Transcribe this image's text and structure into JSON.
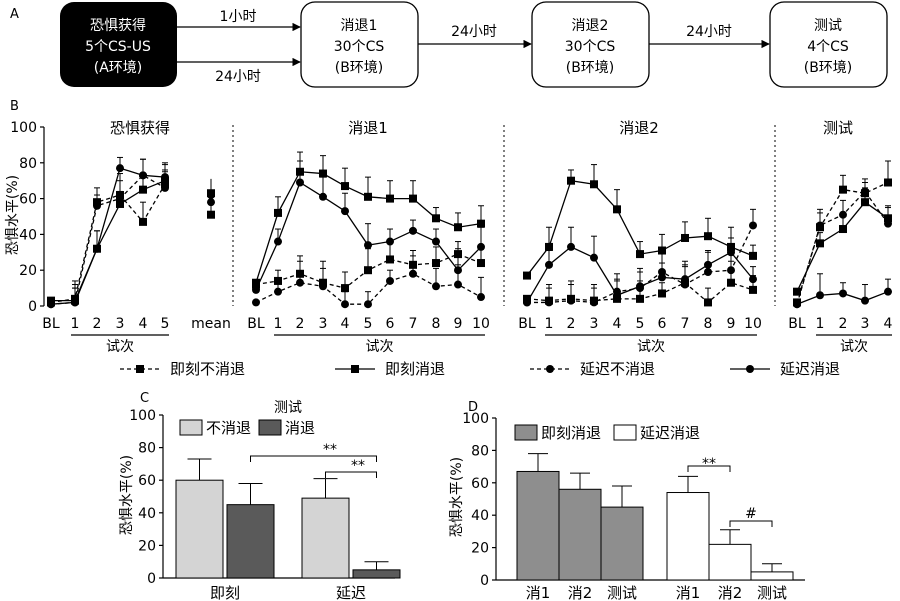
{
  "panels": {
    "A": "A",
    "B": "B",
    "C": "C",
    "D": "D"
  },
  "flow": {
    "box1": [
      "恐惧获得",
      "5个CS-US",
      "(A环境)"
    ],
    "box2": [
      "消退1",
      "30个CS",
      "(B环境)"
    ],
    "box3": [
      "消退2",
      "30个CS",
      "(B环境)"
    ],
    "box4": [
      "测试",
      "4个CS",
      "(B环境)"
    ],
    "arrow_top": "1小时",
    "arrow_bottom": "24小时",
    "arrow2": "24小时",
    "arrow3": "24小时"
  },
  "chart_data": [
    {
      "type": "line",
      "panel": "B",
      "ylabel": "恐惧水平(%)",
      "xlabel": "试次",
      "yticks": [
        "0",
        "20",
        "40",
        "60",
        "80",
        "100"
      ],
      "ylim": [
        0,
        100
      ],
      "sections": [
        {
          "title": "恐惧获得",
          "x": [
            "BL",
            "1",
            "2",
            "3",
            "4",
            "5",
            "mean"
          ]
        },
        {
          "title": "消退1",
          "x": [
            "BL",
            "1",
            "2",
            "3",
            "4",
            "5",
            "6",
            "7",
            "8",
            "9",
            "10"
          ]
        },
        {
          "title": "消退2",
          "x": [
            "BL",
            "1",
            "2",
            "3",
            "4",
            "5",
            "6",
            "7",
            "8",
            "9",
            "10"
          ]
        },
        {
          "title": "测试",
          "x": [
            "BL",
            "1",
            "2",
            "3",
            "4"
          ]
        }
      ],
      "legend": [
        "即刻不消退",
        "即刻消退",
        "延迟不消退",
        "延迟消退"
      ],
      "series": [
        {
          "name": "即刻不消退",
          "marker": "square",
          "dash": true,
          "acq": [
            2,
            4,
            58,
            62,
            47,
            68
          ],
          "acq_mean": 63,
          "ext1": [
            12,
            14,
            18,
            13,
            10,
            20,
            26,
            23,
            24,
            29,
            24
          ],
          "ext2": [
            4,
            3,
            4,
            3,
            4,
            4,
            7,
            13,
            2,
            13,
            9
          ],
          "test": [
            2,
            44,
            65,
            63,
            69
          ]
        },
        {
          "name": "即刻消退",
          "marker": "square",
          "dash": false,
          "acq": [
            3,
            3,
            32,
            57,
            65,
            70
          ],
          "acq_mean": 51,
          "ext1": [
            13,
            52,
            75,
            74,
            67,
            61,
            60,
            60,
            49,
            44,
            46
          ],
          "ext2": [
            17,
            33,
            70,
            68,
            54,
            29,
            31,
            38,
            39,
            33,
            28
          ],
          "test": [
            8,
            35,
            43,
            58,
            49
          ]
        },
        {
          "name": "延迟不消退",
          "marker": "circle",
          "dash": true,
          "acq": [
            1,
            2,
            56,
            60,
            73,
            66
          ],
          "acq_mean": 62,
          "ext1": [
            2,
            8,
            13,
            11,
            1,
            1,
            14,
            18,
            11,
            12,
            5
          ],
          "ext2": [
            2,
            2,
            3,
            2,
            8,
            10,
            19,
            12,
            19,
            20,
            45
          ],
          "test": [
            1,
            45,
            51,
            64,
            46
          ]
        },
        {
          "name": "延迟消退",
          "marker": "circle",
          "dash": false,
          "acq": [
            1,
            2,
            32,
            77,
            73,
            72
          ],
          "acq_mean": 58,
          "ext1": [
            9,
            36,
            69,
            61,
            53,
            34,
            36,
            42,
            36,
            20,
            33
          ],
          "ext2": [
            2,
            23,
            33,
            27,
            6,
            11,
            16,
            15,
            23,
            30,
            15
          ],
          "test": [
            1,
            6,
            7,
            3,
            8
          ]
        }
      ]
    },
    {
      "type": "bar",
      "panel": "C",
      "title": "测试",
      "ylabel": "恐惧水平(%)",
      "ylim": [
        0,
        100
      ],
      "yticks": [
        "0",
        "20",
        "40",
        "60",
        "80",
        "100"
      ],
      "categories": [
        "即刻",
        "延迟"
      ],
      "series": [
        {
          "name": "不消退",
          "color": "#d4d4d4",
          "values": [
            60,
            49
          ],
          "errors": [
            13,
            12
          ]
        },
        {
          "name": "消退",
          "color": "#5a5a5a",
          "values": [
            45,
            5
          ],
          "errors": [
            13,
            5
          ]
        }
      ],
      "annotations": [
        "**",
        "**"
      ]
    },
    {
      "type": "bar",
      "panel": "D",
      "ylabel": "恐惧水平(%)",
      "ylim": [
        0,
        100
      ],
      "yticks": [
        "0",
        "20",
        "40",
        "60",
        "80",
        "100"
      ],
      "groups": [
        {
          "name": "即刻消退",
          "color": "#8e8e8e",
          "categories": [
            "消1",
            "消2",
            "测试"
          ],
          "values": [
            67,
            56,
            45
          ],
          "errors": [
            11,
            10,
            13
          ]
        },
        {
          "name": "延迟消退",
          "color": "#ffffff",
          "categories": [
            "消1",
            "消2",
            "测试"
          ],
          "values": [
            54,
            22,
            5
          ],
          "errors": [
            10,
            9,
            5
          ]
        }
      ],
      "annotations": [
        "**",
        "#"
      ]
    }
  ]
}
